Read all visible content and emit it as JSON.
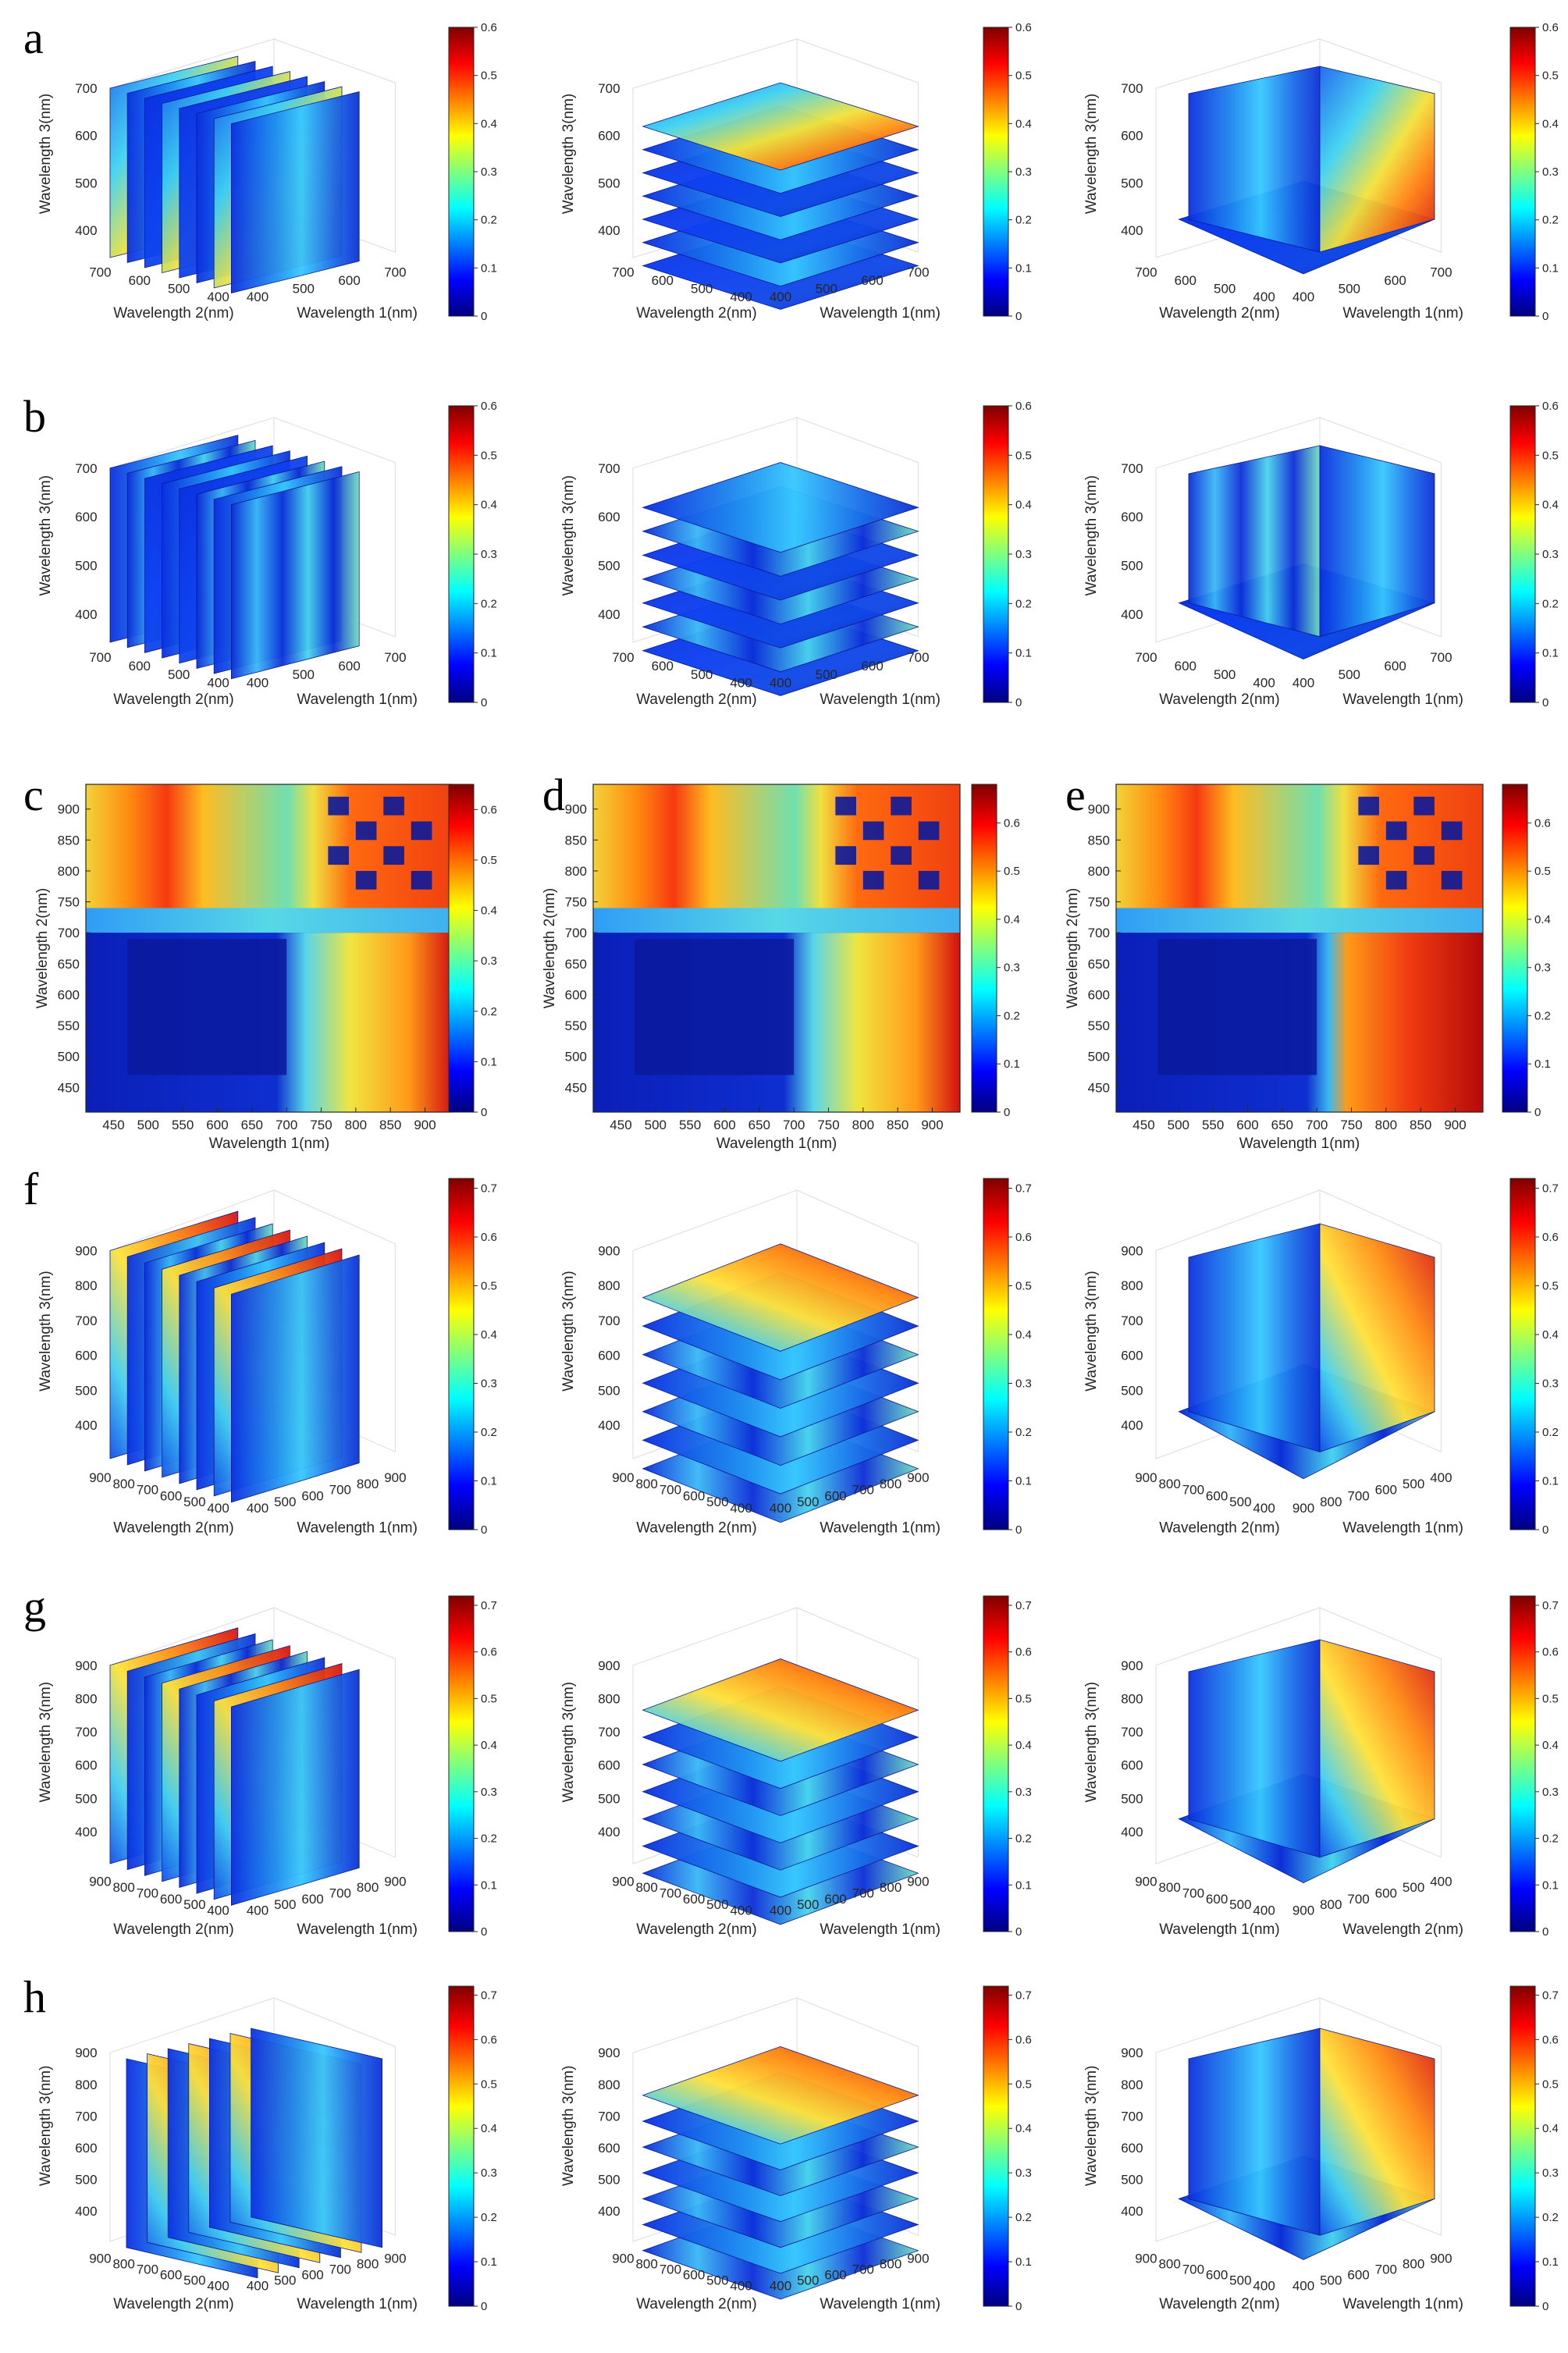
{
  "colors": {
    "colormap": "jet",
    "jet_stops": [
      "#00007f",
      "#0000ff",
      "#007fff",
      "#00ffff",
      "#7fff7f",
      "#ffff00",
      "#ff7f00",
      "#ff0000",
      "#7f0000"
    ],
    "axis": "#262626",
    "grid": "#dcdcdc"
  },
  "chart_data": [
    {
      "panel_label": "a",
      "type": "heatmap",
      "subtype": "3d-slices-x",
      "xlabel": "Wavelength 1(nm)",
      "ylabel": "Wavelength 2(nm)",
      "zlabel": "Wavelength 3(nm)",
      "xticks": [
        "400",
        "500",
        "600",
        "700"
      ],
      "yticks": [
        "400",
        "500",
        "600",
        "700"
      ],
      "zticks": [
        "400",
        "500",
        "600",
        "700"
      ],
      "colorbar_ticks": [
        "0",
        "0.1",
        "0.2",
        "0.3",
        "0.4",
        "0.5",
        "0.6"
      ],
      "clim": [
        0,
        0.6
      ]
    },
    {
      "panel_label": "",
      "type": "heatmap",
      "subtype": "3d-slices-z",
      "xlabel": "Wavelength 1(nm)",
      "ylabel": "Wavelength 2(nm)",
      "zlabel": "Wavelength 3(nm)",
      "xticks": [
        "400",
        "500",
        "600",
        "700"
      ],
      "yticks": [
        "400",
        "500",
        "600",
        "700"
      ],
      "zticks": [
        "400",
        "500",
        "600",
        "700"
      ],
      "colorbar_ticks": [
        "0",
        "0.1",
        "0.2",
        "0.3",
        "0.4",
        "0.5",
        "0.6"
      ],
      "clim": [
        0,
        0.6
      ]
    },
    {
      "panel_label": "",
      "type": "heatmap",
      "subtype": "3d-orthoslices",
      "xlabel": "Wavelength 1(nm)",
      "ylabel": "Wavelength 2(nm)",
      "zlabel": "Wavelength 3(nm)",
      "xticks": [
        "400",
        "500",
        "600",
        "700"
      ],
      "yticks": [
        "400",
        "500",
        "600",
        "700"
      ],
      "zticks": [
        "400",
        "500",
        "600",
        "700"
      ],
      "colorbar_ticks": [
        "0",
        "0.1",
        "0.2",
        "0.3",
        "0.4",
        "0.5",
        "0.6"
      ],
      "clim": [
        0,
        0.6
      ]
    },
    {
      "panel_label": "b",
      "type": "heatmap",
      "subtype": "3d-slices-x",
      "xlabel": "Wavelength 1(nm)",
      "ylabel": "Wavelength 2(nm)",
      "zlabel": "Wavelength 3(nm)",
      "xticks": [
        "400",
        "500",
        "600",
        "700"
      ],
      "yticks": [
        "400",
        "500",
        "600",
        "700"
      ],
      "zticks": [
        "400",
        "500",
        "600",
        "700"
      ],
      "colorbar_ticks": [
        "0",
        "0.1",
        "0.2",
        "0.3",
        "0.4",
        "0.5",
        "0.6"
      ],
      "clim": [
        0,
        0.6
      ]
    },
    {
      "panel_label": "",
      "type": "heatmap",
      "subtype": "3d-slices-z",
      "xlabel": "Wavelength 1(nm)",
      "ylabel": "Wavelength 2(nm)",
      "zlabel": "Wavelength 3(nm)",
      "xticks": [
        "400",
        "500",
        "600",
        "700"
      ],
      "yticks": [
        "400",
        "500",
        "600",
        "700"
      ],
      "zticks": [
        "400",
        "500",
        "600",
        "700"
      ],
      "colorbar_ticks": [
        "0",
        "0.1",
        "0.2",
        "0.3",
        "0.4",
        "0.5",
        "0.6"
      ],
      "clim": [
        0,
        0.6
      ]
    },
    {
      "panel_label": "",
      "type": "heatmap",
      "subtype": "3d-orthoslices",
      "xlabel": "Wavelength 1(nm)",
      "ylabel": "Wavelength 2(nm)",
      "zlabel": "Wavelength 3(nm)",
      "xticks": [
        "400",
        "500",
        "600",
        "700"
      ],
      "yticks": [
        "400",
        "500",
        "600",
        "700"
      ],
      "zticks": [
        "400",
        "500",
        "600",
        "700"
      ],
      "colorbar_ticks": [
        "0",
        "0.1",
        "0.2",
        "0.3",
        "0.4",
        "0.5",
        "0.6"
      ],
      "clim": [
        0,
        0.6
      ]
    },
    {
      "panel_label": "c",
      "type": "heatmap",
      "subtype": "2d",
      "xlabel": "Wavelength 1(nm)",
      "ylabel": "Wavelength 2(nm)",
      "xticks": [
        "450",
        "500",
        "550",
        "600",
        "650",
        "700",
        "750",
        "800",
        "850",
        "900"
      ],
      "yticks": [
        "450",
        "500",
        "550",
        "600",
        "650",
        "700",
        "750",
        "800",
        "850",
        "900"
      ],
      "colorbar_ticks": [
        "0",
        "0.1",
        "0.2",
        "0.3",
        "0.4",
        "0.5",
        "0.6"
      ],
      "clim": [
        0,
        0.65
      ],
      "xlim": [
        410,
        940
      ],
      "ylim": [
        410,
        940
      ]
    },
    {
      "panel_label": "d",
      "type": "heatmap",
      "subtype": "2d",
      "xlabel": "Wavelength 1(nm)",
      "ylabel": "Wavelength 2(nm)",
      "xticks": [
        "450",
        "500",
        "550",
        "600",
        "650",
        "700",
        "750",
        "800",
        "850",
        "900"
      ],
      "yticks": [
        "450",
        "500",
        "550",
        "600",
        "650",
        "700",
        "750",
        "800",
        "850",
        "900"
      ],
      "colorbar_ticks": [
        "0",
        "0.1",
        "0.2",
        "0.3",
        "0.4",
        "0.5",
        "0.6"
      ],
      "clim": [
        0,
        0.68
      ],
      "xlim": [
        410,
        940
      ],
      "ylim": [
        410,
        940
      ]
    },
    {
      "panel_label": "e",
      "type": "heatmap",
      "subtype": "2d",
      "xlabel": "Wavelength 1(nm)",
      "ylabel": "Wavelength 2(nm)",
      "xticks": [
        "450",
        "500",
        "550",
        "600",
        "650",
        "700",
        "750",
        "800",
        "850",
        "900"
      ],
      "yticks": [
        "450",
        "500",
        "550",
        "600",
        "650",
        "700",
        "750",
        "800",
        "850",
        "900"
      ],
      "colorbar_ticks": [
        "0",
        "0.1",
        "0.2",
        "0.3",
        "0.4",
        "0.5",
        "0.6"
      ],
      "clim": [
        0,
        0.68
      ],
      "xlim": [
        410,
        940
      ],
      "ylim": [
        410,
        940
      ]
    },
    {
      "panel_label": "f",
      "type": "heatmap",
      "subtype": "3d-slices-x",
      "xlabel": "Wavelength 1(nm)",
      "ylabel": "Wavelength 2(nm)",
      "zlabel": "Wavelength 3(nm)",
      "xticks": [
        "400",
        "500",
        "600",
        "700",
        "800",
        "900"
      ],
      "yticks": [
        "400",
        "500",
        "600",
        "700",
        "800",
        "900"
      ],
      "zticks": [
        "400",
        "500",
        "600",
        "700",
        "800",
        "900"
      ],
      "colorbar_ticks": [
        "0",
        "0.1",
        "0.2",
        "0.3",
        "0.4",
        "0.5",
        "0.6",
        "0.7"
      ],
      "clim": [
        0,
        0.72
      ]
    },
    {
      "panel_label": "",
      "type": "heatmap",
      "subtype": "3d-slices-z",
      "xlabel": "Wavelength 1(nm)",
      "ylabel": "Wavelength 2(nm)",
      "zlabel": "Wavelength 3(nm)",
      "xticks": [
        "400",
        "500",
        "600",
        "700",
        "800",
        "900"
      ],
      "yticks": [
        "400",
        "500",
        "600",
        "700",
        "800",
        "900"
      ],
      "zticks": [
        "400",
        "500",
        "600",
        "700",
        "800",
        "900"
      ],
      "colorbar_ticks": [
        "0",
        "0.1",
        "0.2",
        "0.3",
        "0.4",
        "0.5",
        "0.6",
        "0.7"
      ],
      "clim": [
        0,
        0.72
      ]
    },
    {
      "panel_label": "",
      "type": "heatmap",
      "subtype": "3d-orthoslices",
      "xlabel": "Wavelength 1(nm)",
      "ylabel": "Wavelength 2(nm)",
      "zlabel": "Wavelength 3(nm)",
      "xticks": [
        "900",
        "800",
        "700",
        "600",
        "500",
        "400"
      ],
      "yticks": [
        "400",
        "500",
        "600",
        "700",
        "800",
        "900"
      ],
      "zticks": [
        "400",
        "500",
        "600",
        "700",
        "800",
        "900"
      ],
      "colorbar_ticks": [
        "0",
        "0.1",
        "0.2",
        "0.3",
        "0.4",
        "0.5",
        "0.6",
        "0.7"
      ],
      "clim": [
        0,
        0.72
      ]
    },
    {
      "panel_label": "g",
      "type": "heatmap",
      "subtype": "3d-slices-x",
      "xlabel": "Wavelength 1(nm)",
      "ylabel": "Wavelength 2(nm)",
      "zlabel": "Wavelength 3(nm)",
      "xticks": [
        "400",
        "500",
        "600",
        "700",
        "800",
        "900"
      ],
      "yticks": [
        "400",
        "500",
        "600",
        "700",
        "800",
        "900"
      ],
      "zticks": [
        "400",
        "500",
        "600",
        "700",
        "800",
        "900"
      ],
      "colorbar_ticks": [
        "0",
        "0.1",
        "0.2",
        "0.3",
        "0.4",
        "0.5",
        "0.6",
        "0.7"
      ],
      "clim": [
        0,
        0.72
      ]
    },
    {
      "panel_label": "",
      "type": "heatmap",
      "subtype": "3d-slices-z",
      "xlabel": "Wavelength 1(nm)",
      "ylabel": "Wavelength 2(nm)",
      "zlabel": "Wavelength 3(nm)",
      "xticks": [
        "400",
        "500",
        "600",
        "700",
        "800",
        "900"
      ],
      "yticks": [
        "400",
        "500",
        "600",
        "700",
        "800",
        "900"
      ],
      "zticks": [
        "400",
        "500",
        "600",
        "700",
        "800",
        "900"
      ],
      "colorbar_ticks": [
        "0",
        "0.1",
        "0.2",
        "0.3",
        "0.4",
        "0.5",
        "0.6",
        "0.7"
      ],
      "clim": [
        0,
        0.72
      ]
    },
    {
      "panel_label": "",
      "type": "heatmap",
      "subtype": "3d-orthoslices",
      "xlabel": "Wavelength 2(nm)",
      "ylabel": "Wavelength 1(nm)",
      "zlabel": "Wavelength 3(nm)",
      "xticks": [
        "900",
        "800",
        "700",
        "600",
        "500",
        "400"
      ],
      "yticks": [
        "400",
        "500",
        "600",
        "700",
        "800",
        "900"
      ],
      "zticks": [
        "400",
        "500",
        "600",
        "700",
        "800",
        "900"
      ],
      "colorbar_ticks": [
        "0",
        "0.1",
        "0.2",
        "0.3",
        "0.4",
        "0.5",
        "0.6",
        "0.7"
      ],
      "clim": [
        0,
        0.72
      ]
    },
    {
      "panel_label": "h",
      "type": "heatmap",
      "subtype": "3d-slices-y",
      "xlabel": "Wavelength 1(nm)",
      "ylabel": "Wavelength 2(nm)",
      "zlabel": "Wavelength 3(nm)",
      "xticks": [
        "400",
        "500",
        "600",
        "700",
        "800",
        "900"
      ],
      "yticks": [
        "400",
        "500",
        "600",
        "700",
        "800",
        "900"
      ],
      "zticks": [
        "400",
        "500",
        "600",
        "700",
        "800",
        "900"
      ],
      "colorbar_ticks": [
        "0",
        "0.1",
        "0.2",
        "0.3",
        "0.4",
        "0.5",
        "0.6",
        "0.7"
      ],
      "clim": [
        0,
        0.72
      ]
    },
    {
      "panel_label": "",
      "type": "heatmap",
      "subtype": "3d-slices-z",
      "xlabel": "Wavelength 1(nm)",
      "ylabel": "Wavelength 2(nm)",
      "zlabel": "Wavelength 3(nm)",
      "xticks": [
        "400",
        "500",
        "600",
        "700",
        "800",
        "900"
      ],
      "yticks": [
        "400",
        "500",
        "600",
        "700",
        "800",
        "900"
      ],
      "zticks": [
        "400",
        "500",
        "600",
        "700",
        "800",
        "900"
      ],
      "colorbar_ticks": [
        "0",
        "0.1",
        "0.2",
        "0.3",
        "0.4",
        "0.5",
        "0.6",
        "0.7"
      ],
      "clim": [
        0,
        0.72
      ]
    },
    {
      "panel_label": "",
      "type": "heatmap",
      "subtype": "3d-orthoslices",
      "xlabel": "Wavelength 1(nm)",
      "ylabel": "Wavelength 2(nm)",
      "zlabel": "Wavelength 3(nm)",
      "xticks": [
        "400",
        "500",
        "600",
        "700",
        "800",
        "900"
      ],
      "yticks": [
        "400",
        "500",
        "600",
        "700",
        "800",
        "900"
      ],
      "zticks": [
        "400",
        "500",
        "600",
        "700",
        "800",
        "900"
      ],
      "colorbar_ticks": [
        "0",
        "0.1",
        "0.2",
        "0.3",
        "0.4",
        "0.5",
        "0.6",
        "0.7"
      ],
      "clim": [
        0,
        0.72
      ]
    }
  ]
}
